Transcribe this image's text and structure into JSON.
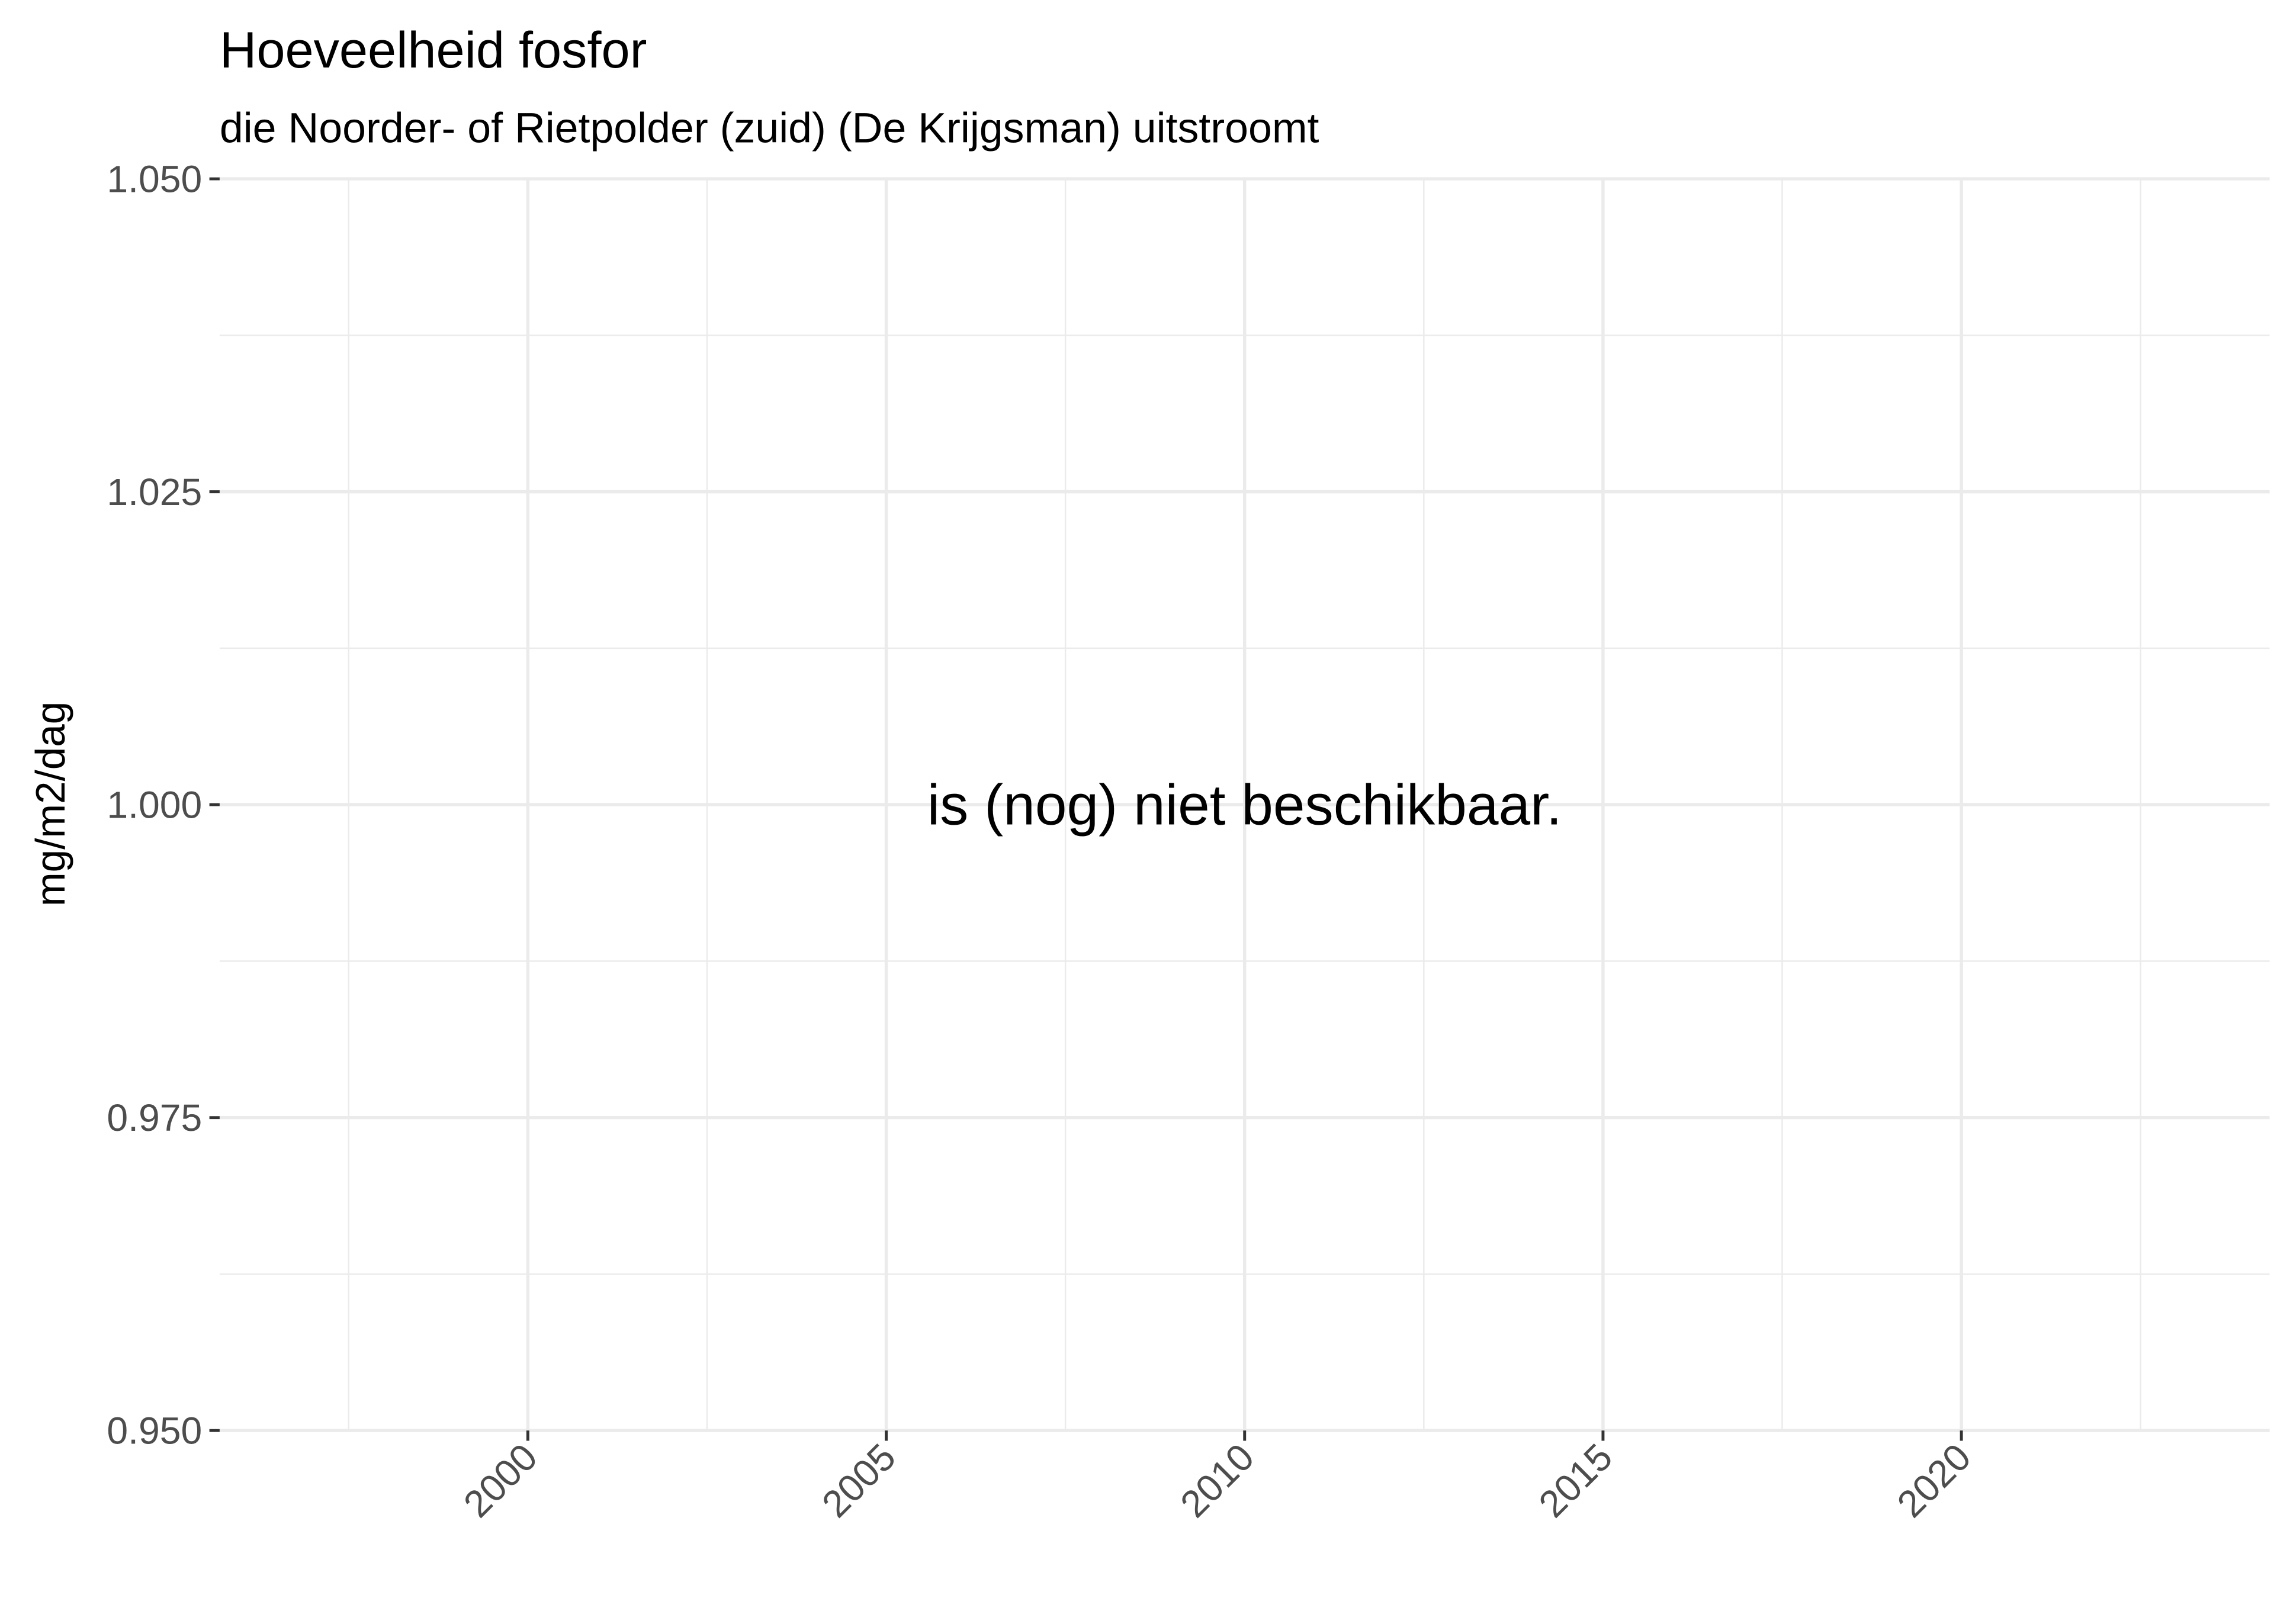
{
  "chart_data": {
    "type": "line",
    "title": "Hoeveelheid fosfor",
    "subtitle": "die Noorder- of Rietpolder (zuid) (De Krijgsman) uitstroomt",
    "y_label": "mg/m2/dag",
    "annotation": "is (nog) niet beschikbaar.",
    "series": [],
    "xlim": [
      1995.7,
      2024.3
    ],
    "xticks": [
      2000,
      2005,
      2010,
      2015,
      2020
    ],
    "ylim": [
      0.95,
      1.05
    ],
    "yticks": [
      {
        "value": 0.95,
        "label": "0.950"
      },
      {
        "value": 0.975,
        "label": "0.975"
      },
      {
        "value": 1.0,
        "label": "1.000"
      },
      {
        "value": 1.025,
        "label": "1.025"
      },
      {
        "value": 1.05,
        "label": "1.050"
      }
    ],
    "grid": true
  }
}
